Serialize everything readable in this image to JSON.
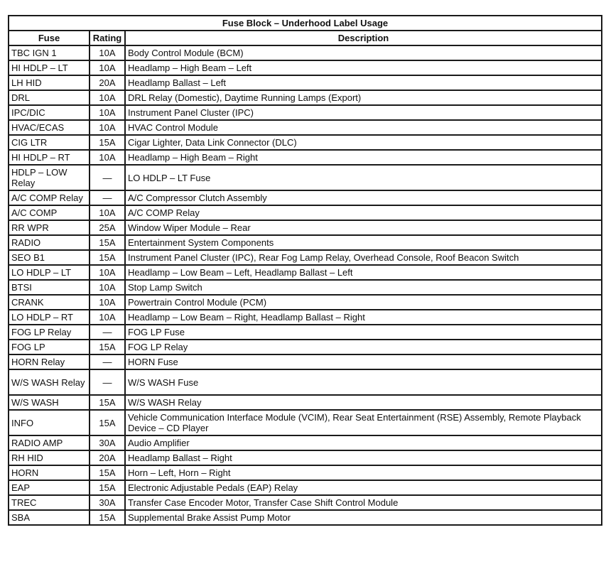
{
  "title": "Fuse Block – Underhood Label Usage",
  "headers": {
    "fuse": "Fuse",
    "rating": "Rating",
    "description": "Description"
  },
  "rows": [
    {
      "fuse": "TBC IGN 1",
      "rating": "10A",
      "description": "Body Control Module (BCM)"
    },
    {
      "fuse": "HI HDLP – LT",
      "rating": "10A",
      "description": "Headlamp – High Beam – Left"
    },
    {
      "fuse": "LH HID",
      "rating": "20A",
      "description": "Headlamp Ballast – Left"
    },
    {
      "fuse": "DRL",
      "rating": "10A",
      "description": "DRL Relay (Domestic), Daytime Running Lamps (Export)"
    },
    {
      "fuse": "IPC/DIC",
      "rating": "10A",
      "description": "Instrument Panel Cluster (IPC)"
    },
    {
      "fuse": "HVAC/ECAS",
      "rating": "10A",
      "description": "HVAC Control Module"
    },
    {
      "fuse": "CIG LTR",
      "rating": "15A",
      "description": "Cigar Lighter, Data Link Connector (DLC)"
    },
    {
      "fuse": "HI HDLP – RT",
      "rating": "10A",
      "description": "Headlamp – High Beam – Right"
    },
    {
      "fuse": "HDLP – LOW Relay",
      "rating": "—",
      "description": "LO HDLP – LT Fuse"
    },
    {
      "fuse": "A/C COMP Relay",
      "rating": "—",
      "description": "A/C Compressor Clutch Assembly"
    },
    {
      "fuse": "A/C COMP",
      "rating": "10A",
      "description": "A/C COMP Relay"
    },
    {
      "fuse": "RR WPR",
      "rating": "25A",
      "description": "Window Wiper Module – Rear"
    },
    {
      "fuse": "RADIO",
      "rating": "15A",
      "description": "Entertainment System Components"
    },
    {
      "fuse": "SEO B1",
      "rating": "15A",
      "description": "Instrument Panel Cluster (IPC), Rear Fog Lamp Relay, Overhead Console, Roof Beacon Switch"
    },
    {
      "fuse": "LO HDLP – LT",
      "rating": "10A",
      "description": "Headlamp – Low Beam – Left, Headlamp Ballast – Left"
    },
    {
      "fuse": "BTSI",
      "rating": "10A",
      "description": "Stop Lamp Switch"
    },
    {
      "fuse": "CRANK",
      "rating": "10A",
      "description": "Powertrain Control Module (PCM)"
    },
    {
      "fuse": "LO HDLP – RT",
      "rating": "10A",
      "description": "Headlamp – Low Beam – Right, Headlamp Ballast – Right"
    },
    {
      "fuse": "FOG LP Relay",
      "rating": "—",
      "description": "FOG LP Fuse"
    },
    {
      "fuse": "FOG LP",
      "rating": "15A",
      "description": "FOG LP Relay"
    },
    {
      "fuse": "HORN Relay",
      "rating": "—",
      "description": "HORN Fuse"
    },
    {
      "fuse": "W/S WASH Relay",
      "rating": "—",
      "description": "W/S WASH Fuse"
    },
    {
      "fuse": "W/S WASH",
      "rating": "15A",
      "description": "W/S WASH Relay"
    },
    {
      "fuse": "INFO",
      "rating": "15A",
      "description": "Vehicle Communication Interface Module (VCIM), Rear Seat Entertainment (RSE) Assembly, Remote Playback Device – CD Player"
    },
    {
      "fuse": "RADIO AMP",
      "rating": "30A",
      "description": "Audio Amplifier"
    },
    {
      "fuse": "RH HID",
      "rating": "20A",
      "description": "Headlamp Ballast – Right"
    },
    {
      "fuse": "HORN",
      "rating": "15A",
      "description": "Horn – Left, Horn – Right"
    },
    {
      "fuse": "EAP",
      "rating": "15A",
      "description": "Electronic Adjustable Pedals (EAP) Relay"
    },
    {
      "fuse": "TREC",
      "rating": "30A",
      "description": "Transfer Case Encoder Motor, Transfer Case Shift Control Module"
    },
    {
      "fuse": "SBA",
      "rating": "15A",
      "description": "Supplemental Brake Assist Pump Motor"
    }
  ]
}
